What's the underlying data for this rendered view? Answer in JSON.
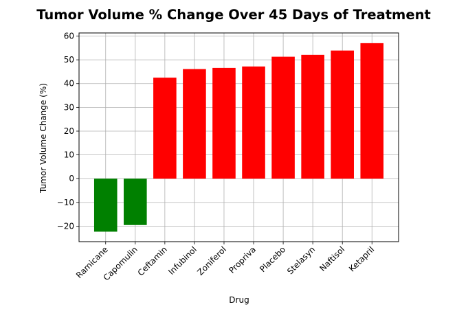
{
  "chart_data": {
    "type": "bar",
    "title": "Tumor Volume % Change Over 45 Days of Treatment",
    "xlabel": "Drug",
    "ylabel": "Tumor Volume Change (%)",
    "categories": [
      "Ramicane",
      "Capomulin",
      "Ceftamin",
      "Infubinol",
      "Zoniferol",
      "Propriva",
      "Placebo",
      "Stelasyn",
      "Naftisol",
      "Ketapril"
    ],
    "values": [
      -22.3,
      -19.5,
      42.5,
      46.1,
      46.6,
      47.2,
      51.3,
      52.1,
      53.9,
      57.0
    ],
    "ylim": [
      -26.5,
      61.3
    ],
    "yticks": [
      -20,
      -10,
      0,
      10,
      20,
      30,
      40,
      50,
      60
    ],
    "grid": true,
    "colors": {
      "negative": "#008000",
      "positive": "#ff0000",
      "grid": "#b0b0b0"
    }
  }
}
